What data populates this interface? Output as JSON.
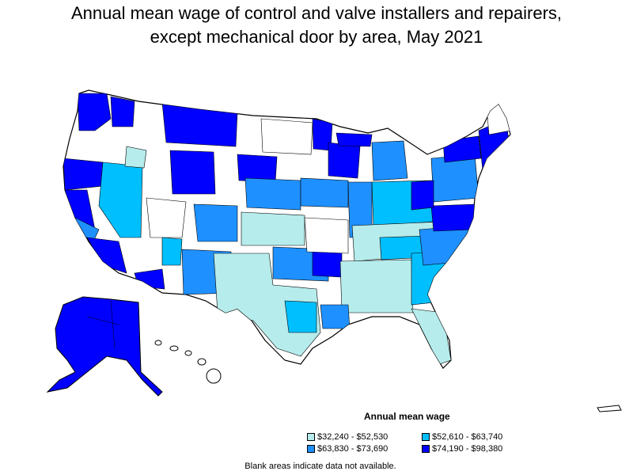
{
  "title_line1": "Annual mean wage of control and valve installers and repairers,",
  "title_line2": "except mechanical door by area, May 2021",
  "legend": {
    "title": "Annual mean wage",
    "items": [
      {
        "label": "$32,240 - $52,530",
        "color": "#b6ecec"
      },
      {
        "label": "$52,610 - $63,740",
        "color": "#00bfff"
      },
      {
        "label": "$63,830 - $73,690",
        "color": "#1e90ff"
      },
      {
        "label": "$74,190 - $98,380",
        "color": "#0000ff"
      }
    ]
  },
  "footnote": "Blank areas indicate data not available.",
  "colors": {
    "blank": "#ffffff",
    "border": "#000000"
  }
}
